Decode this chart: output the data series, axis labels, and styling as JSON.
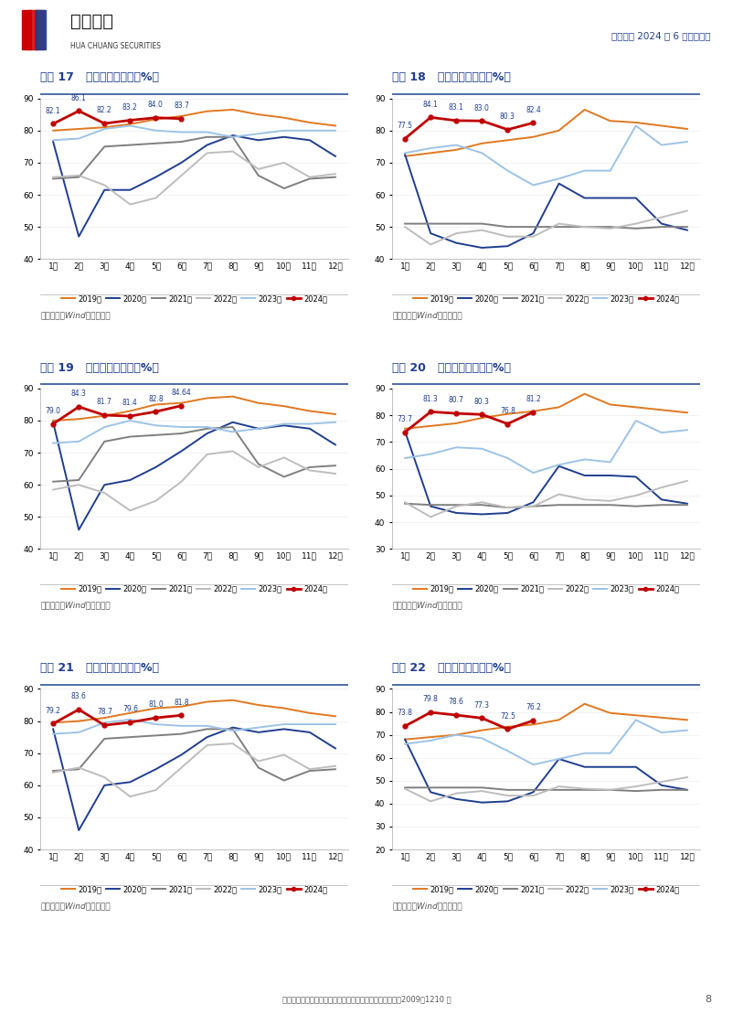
{
  "page_title": "航空行业 2024 年 6 月数据点评",
  "months": [
    "1月",
    "2月",
    "3月",
    "4月",
    "5月",
    "6月",
    "7月",
    "8月",
    "9月",
    "10月",
    "11月",
    "12月"
  ],
  "charts": [
    {
      "id": 17,
      "title": "图表 17   南航国内客座率（%）",
      "ylim": [
        40,
        90
      ],
      "yticks": [
        40,
        50,
        60,
        70,
        80,
        90
      ],
      "annotations": [
        "82.1",
        "86.1",
        "82.2",
        "83.2",
        "84.0",
        "83.7"
      ],
      "ann_months": [
        0,
        1,
        2,
        3,
        4,
        5
      ],
      "series": {
        "2019年": [
          80.0,
          80.5,
          81.0,
          82.0,
          83.5,
          84.5,
          86.0,
          86.5,
          85.0,
          84.0,
          82.5,
          81.5
        ],
        "2020年": [
          76.5,
          47.0,
          61.5,
          61.5,
          65.5,
          70.0,
          75.5,
          78.5,
          77.0,
          78.0,
          77.0,
          72.0
        ],
        "2021年": [
          65.0,
          65.5,
          75.0,
          75.5,
          76.0,
          76.5,
          78.0,
          78.0,
          66.0,
          62.0,
          65.0,
          65.5
        ],
        "2022年": [
          65.5,
          66.0,
          63.0,
          57.0,
          59.0,
          66.0,
          73.0,
          73.5,
          68.0,
          70.0,
          65.5,
          66.5
        ],
        "2023年": [
          77.0,
          77.5,
          80.5,
          81.5,
          80.0,
          79.5,
          79.5,
          78.0,
          79.0,
          80.0,
          80.0,
          80.0
        ],
        "2024年": [
          82.1,
          86.1,
          82.2,
          83.2,
          84.0,
          83.7,
          null,
          null,
          null,
          null,
          null,
          null
        ]
      },
      "colors": {
        "2019年": "#E07820",
        "2020年": "#1F3E8F",
        "2021年": "#7F7F7F",
        "2022年": "#BDBDBD",
        "2023年": "#9DC3E6",
        "2024年": "#C00000"
      }
    },
    {
      "id": 18,
      "title": "图表 18   南航国际客座率（%）",
      "ylim": [
        40,
        90
      ],
      "yticks": [
        40,
        50,
        60,
        70,
        80,
        90
      ],
      "annotations": [
        "77.5",
        "84.1",
        "83.1",
        "83.0",
        "80.3",
        "82.4"
      ],
      "ann_months": [
        0,
        1,
        2,
        3,
        4,
        5
      ],
      "series": {
        "2019年": [
          72.0,
          73.0,
          74.0,
          76.0,
          77.0,
          78.0,
          80.0,
          86.5,
          83.0,
          82.5,
          81.5,
          80.5
        ],
        "2020年": [
          72.5,
          48.0,
          45.0,
          43.5,
          44.0,
          48.0,
          63.5,
          59.0,
          59.0,
          59.0,
          51.0,
          49.0
        ],
        "2021年": [
          51.0,
          51.0,
          51.0,
          51.0,
          50.0,
          50.0,
          50.0,
          50.0,
          50.0,
          49.5,
          50.0,
          50.0
        ],
        "2022年": [
          50.0,
          44.5,
          48.0,
          49.0,
          47.0,
          47.0,
          51.0,
          50.0,
          49.5,
          51.0,
          53.0,
          55.0
        ],
        "2023年": [
          73.0,
          74.5,
          75.5,
          73.0,
          67.5,
          63.0,
          65.0,
          67.5,
          67.5,
          81.5,
          75.5,
          76.5
        ],
        "2024年": [
          77.5,
          84.1,
          83.1,
          83.0,
          80.3,
          82.4,
          null,
          null,
          null,
          null,
          null,
          null
        ]
      },
      "colors": {
        "2019年": "#E07820",
        "2020年": "#1F3E8F",
        "2021年": "#7F7F7F",
        "2022年": "#BDBDBD",
        "2023年": "#9DC3E6",
        "2024年": "#C00000"
      }
    },
    {
      "id": 19,
      "title": "图表 19   东航国内客座率（%）",
      "ylim": [
        40,
        90
      ],
      "yticks": [
        40,
        50,
        60,
        70,
        80,
        90
      ],
      "annotations": [
        "79.0",
        "84.3",
        "81.7",
        "81.4",
        "82.8",
        "84.64"
      ],
      "ann_months": [
        0,
        1,
        2,
        3,
        4,
        5
      ],
      "series": {
        "2019年": [
          80.0,
          80.5,
          81.5,
          83.0,
          85.0,
          85.5,
          87.0,
          87.5,
          85.5,
          84.5,
          83.0,
          82.0
        ],
        "2020年": [
          79.5,
          46.0,
          60.0,
          61.5,
          65.5,
          70.5,
          76.0,
          79.5,
          77.5,
          78.5,
          77.5,
          72.5
        ],
        "2021年": [
          61.0,
          61.5,
          73.5,
          75.0,
          75.5,
          76.0,
          77.5,
          78.0,
          66.5,
          62.5,
          65.5,
          66.0
        ],
        "2022年": [
          58.5,
          60.0,
          57.5,
          52.0,
          55.0,
          61.0,
          69.5,
          70.5,
          65.5,
          68.5,
          64.5,
          63.5
        ],
        "2023年": [
          73.0,
          73.5,
          78.0,
          80.0,
          78.5,
          78.0,
          78.0,
          76.5,
          77.5,
          79.0,
          79.0,
          79.5
        ],
        "2024年": [
          79.0,
          84.3,
          81.7,
          81.4,
          82.8,
          84.64,
          null,
          null,
          null,
          null,
          null,
          null
        ]
      },
      "colors": {
        "2019年": "#E07820",
        "2020年": "#1F3E8F",
        "2021年": "#7F7F7F",
        "2022年": "#BDBDBD",
        "2023年": "#9DC3E6",
        "2024年": "#C00000"
      }
    },
    {
      "id": 20,
      "title": "图表 20   东航国际客座率（%）",
      "ylim": [
        30,
        90
      ],
      "yticks": [
        30,
        40,
        50,
        60,
        70,
        80,
        90
      ],
      "annotations": [
        "73.7",
        "81.3",
        "80.7",
        "80.3",
        "76.8",
        "81.2"
      ],
      "ann_months": [
        0,
        1,
        2,
        3,
        4,
        5
      ],
      "series": {
        "2019年": [
          75.0,
          76.0,
          77.0,
          79.0,
          80.5,
          81.5,
          83.0,
          88.0,
          84.0,
          83.0,
          82.0,
          81.0
        ],
        "2020年": [
          74.0,
          46.0,
          43.5,
          43.0,
          43.5,
          47.5,
          61.0,
          57.5,
          57.5,
          57.0,
          48.5,
          47.0
        ],
        "2021年": [
          47.0,
          46.5,
          46.5,
          46.5,
          45.5,
          46.0,
          46.5,
          46.5,
          46.5,
          46.0,
          46.5,
          46.5
        ],
        "2022年": [
          47.5,
          42.0,
          46.0,
          47.5,
          45.5,
          46.0,
          50.5,
          48.5,
          48.0,
          50.0,
          53.0,
          55.5
        ],
        "2023年": [
          64.0,
          65.5,
          68.0,
          67.5,
          64.0,
          58.5,
          61.5,
          63.5,
          62.5,
          78.0,
          73.5,
          74.5
        ],
        "2024年": [
          73.7,
          81.3,
          80.7,
          80.3,
          76.8,
          81.2,
          null,
          null,
          null,
          null,
          null,
          null
        ]
      },
      "colors": {
        "2019年": "#E07820",
        "2020年": "#1F3E8F",
        "2021年": "#7F7F7F",
        "2022年": "#BDBDBD",
        "2023年": "#9DC3E6",
        "2024年": "#C00000"
      }
    },
    {
      "id": 21,
      "title": "图表 21   国航国内客座率（%）",
      "ylim": [
        40,
        90
      ],
      "yticks": [
        40,
        50,
        60,
        70,
        80,
        90
      ],
      "annotations": [
        "79.2",
        "83.6",
        "78.7",
        "79.6",
        "81.0",
        "81.8"
      ],
      "ann_months": [
        0,
        1,
        2,
        3,
        4,
        5
      ],
      "series": {
        "2019年": [
          79.5,
          80.0,
          81.0,
          82.5,
          84.0,
          84.5,
          86.0,
          86.5,
          85.0,
          84.0,
          82.5,
          81.5
        ],
        "2020年": [
          77.5,
          46.0,
          60.0,
          61.0,
          65.0,
          69.5,
          75.0,
          78.0,
          76.5,
          77.5,
          76.5,
          71.5
        ],
        "2021年": [
          64.5,
          65.0,
          74.5,
          75.0,
          75.5,
          76.0,
          77.5,
          77.5,
          65.5,
          61.5,
          64.5,
          65.0
        ],
        "2022年": [
          64.0,
          65.5,
          62.5,
          56.5,
          58.5,
          65.5,
          72.5,
          73.0,
          67.5,
          69.5,
          65.0,
          66.0
        ],
        "2023年": [
          76.0,
          76.5,
          79.5,
          80.5,
          79.0,
          78.5,
          78.5,
          77.0,
          78.0,
          79.0,
          79.0,
          79.0
        ],
        "2024年": [
          79.2,
          83.6,
          78.7,
          79.6,
          81.0,
          81.8,
          null,
          null,
          null,
          null,
          null,
          null
        ]
      },
      "colors": {
        "2019年": "#E07820",
        "2020年": "#1F3E8F",
        "2021年": "#7F7F7F",
        "2022年": "#BDBDBD",
        "2023年": "#9DC3E6",
        "2024年": "#C00000"
      }
    },
    {
      "id": 22,
      "title": "图表 22   国航国际客座率（%）",
      "ylim": [
        20,
        90
      ],
      "yticks": [
        20,
        30,
        40,
        50,
        60,
        70,
        80,
        90
      ],
      "annotations": [
        "73.8",
        "79.8",
        "78.6",
        "77.3",
        "72.5",
        "76.2"
      ],
      "ann_months": [
        0,
        1,
        2,
        3,
        4,
        5
      ],
      "series": {
        "2019年": [
          68.0,
          69.0,
          70.0,
          72.0,
          73.5,
          74.5,
          76.5,
          83.5,
          79.5,
          78.5,
          77.5,
          76.5
        ],
        "2020年": [
          68.0,
          45.0,
          42.0,
          40.5,
          41.0,
          45.0,
          59.5,
          56.0,
          56.0,
          56.0,
          48.0,
          46.0
        ],
        "2021年": [
          47.0,
          47.0,
          47.0,
          47.0,
          46.0,
          46.0,
          46.0,
          46.0,
          46.0,
          45.5,
          46.0,
          46.0
        ],
        "2022年": [
          46.5,
          41.0,
          44.5,
          45.5,
          43.5,
          43.5,
          47.5,
          46.5,
          46.0,
          47.5,
          49.5,
          51.5
        ],
        "2023年": [
          66.0,
          67.5,
          70.0,
          68.5,
          63.0,
          57.0,
          59.5,
          62.0,
          62.0,
          76.5,
          71.0,
          72.0
        ],
        "2024年": [
          73.8,
          79.8,
          78.6,
          77.3,
          72.5,
          76.2,
          null,
          null,
          null,
          null,
          null,
          null
        ]
      },
      "colors": {
        "2019年": "#E07820",
        "2020年": "#1F3E8F",
        "2021年": "#7F7F7F",
        "2022年": "#BDBDBD",
        "2023年": "#9DC3E6",
        "2024年": "#C00000"
      }
    }
  ],
  "legend_labels": [
    "2019年",
    "2020年",
    "2021年",
    "2022年",
    "2023年",
    "2024年"
  ],
  "source_text": "资料来源：Wind，华创证券",
  "header_line": "航空行业 2024 年 6 月数据点评",
  "bg_color": "#FFFFFF",
  "title_color": "#1F3E8F",
  "footer_text": "证监会审核华创证券投资咨询业务资格批文号：证监许可（2009）1210 号",
  "page_num": "8"
}
